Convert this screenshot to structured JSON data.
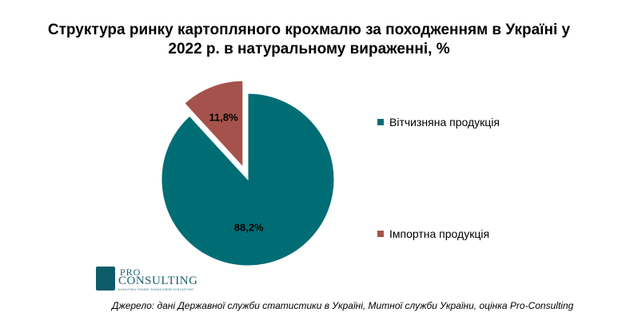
{
  "title": "Структура ринку картопляного крохмалю за походженням в Україні у 2022 р. в натуральному вираженні, %",
  "chart_data": {
    "type": "pie",
    "title": "Структура ринку картопляного крохмалю за походженням в Україні у 2022 р. в натуральному вираженні, %",
    "slices": [
      {
        "name": "Вітчизняна продукція",
        "value": 88.2,
        "label": "88,2%",
        "color": "#006d75",
        "exploded": false
      },
      {
        "name": "Імпортна продукція",
        "value": 11.8,
        "label": "11,8%",
        "color": "#a5524c",
        "exploded": true
      }
    ],
    "legend_position": "right"
  },
  "logo": {
    "pro": "PRO",
    "name": "CONSULTING",
    "tagline": "АНАЛІТИКА РИНКІВ, ФІНАНСОВИЙ КОНСАЛТИНГ"
  },
  "source": "Джерело: дані  Державної служби статистики в Україні, Митної служби України, оцінка Pro-Consulting"
}
